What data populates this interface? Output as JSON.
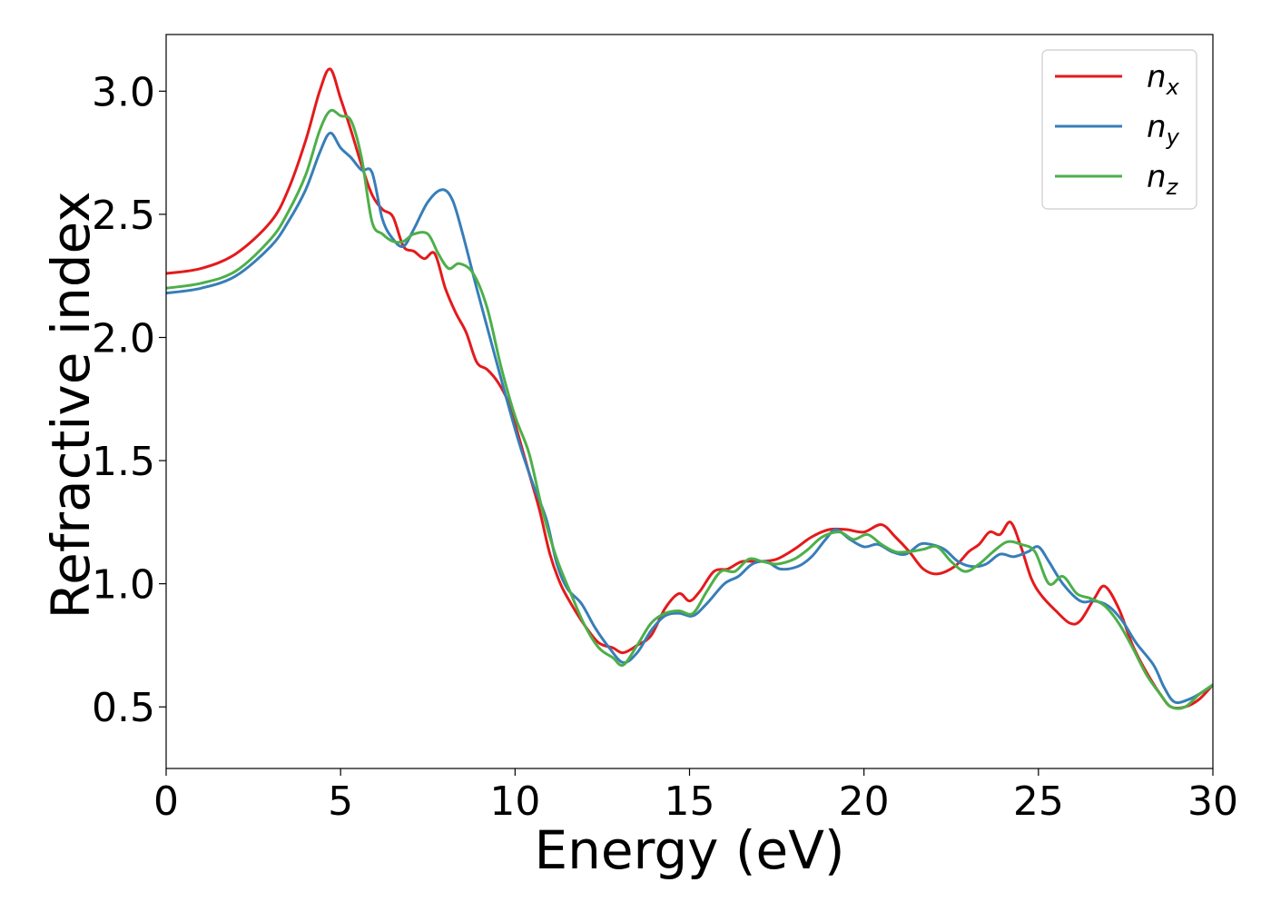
{
  "chart_data": {
    "type": "line",
    "title": "",
    "xlabel": "Energy (eV)",
    "ylabel": "Refractive index",
    "xlim": [
      0,
      30
    ],
    "ylim": [
      0.25,
      3.23
    ],
    "xticks": [
      0,
      5,
      10,
      15,
      20,
      25,
      30
    ],
    "yticks": [
      0.5,
      1.0,
      1.5,
      2.0,
      2.5,
      3.0
    ],
    "xtick_labels": [
      "0",
      "5",
      "10",
      "15",
      "20",
      "25",
      "30"
    ],
    "ytick_labels": [
      "0.5",
      "1.0",
      "1.5",
      "2.0",
      "2.5",
      "3.0"
    ],
    "grid": false,
    "legend": {
      "placement": "top-right",
      "entries": [
        {
          "base": "n",
          "sub": "x"
        },
        {
          "base": "n",
          "sub": "y"
        },
        {
          "base": "n",
          "sub": "z"
        }
      ]
    },
    "series": [
      {
        "name": "n_x",
        "color": "#e41a1c",
        "points": [
          [
            0,
            2.26
          ],
          [
            1,
            2.28
          ],
          [
            2,
            2.34
          ],
          [
            3,
            2.47
          ],
          [
            3.5,
            2.6
          ],
          [
            4,
            2.8
          ],
          [
            4.4,
            3.0
          ],
          [
            4.7,
            3.09
          ],
          [
            5,
            2.97
          ],
          [
            5.3,
            2.84
          ],
          [
            5.6,
            2.7
          ],
          [
            5.9,
            2.58
          ],
          [
            6.2,
            2.52
          ],
          [
            6.5,
            2.49
          ],
          [
            6.8,
            2.37
          ],
          [
            7.1,
            2.35
          ],
          [
            7.4,
            2.32
          ],
          [
            7.7,
            2.34
          ],
          [
            8,
            2.2
          ],
          [
            8.3,
            2.1
          ],
          [
            8.6,
            2.02
          ],
          [
            8.9,
            1.9
          ],
          [
            9.2,
            1.87
          ],
          [
            9.5,
            1.82
          ],
          [
            9.8,
            1.74
          ],
          [
            10.1,
            1.6
          ],
          [
            10.4,
            1.45
          ],
          [
            10.7,
            1.3
          ],
          [
            11,
            1.12
          ],
          [
            11.3,
            1.0
          ],
          [
            11.6,
            0.92
          ],
          [
            12,
            0.83
          ],
          [
            12.4,
            0.76
          ],
          [
            12.8,
            0.74
          ],
          [
            13.1,
            0.72
          ],
          [
            13.5,
            0.75
          ],
          [
            13.9,
            0.79
          ],
          [
            14.3,
            0.9
          ],
          [
            14.7,
            0.96
          ],
          [
            15,
            0.93
          ],
          [
            15.3,
            0.97
          ],
          [
            15.7,
            1.05
          ],
          [
            16.1,
            1.06
          ],
          [
            16.5,
            1.09
          ],
          [
            17,
            1.09
          ],
          [
            17.5,
            1.1
          ],
          [
            18,
            1.14
          ],
          [
            18.5,
            1.19
          ],
          [
            19,
            1.22
          ],
          [
            19.5,
            1.22
          ],
          [
            20,
            1.21
          ],
          [
            20.5,
            1.24
          ],
          [
            20.9,
            1.19
          ],
          [
            21.3,
            1.13
          ],
          [
            21.7,
            1.06
          ],
          [
            22.1,
            1.04
          ],
          [
            22.6,
            1.07
          ],
          [
            23,
            1.13
          ],
          [
            23.3,
            1.16
          ],
          [
            23.6,
            1.21
          ],
          [
            23.9,
            1.2
          ],
          [
            24.2,
            1.25
          ],
          [
            24.5,
            1.15
          ],
          [
            24.8,
            1.02
          ],
          [
            25.1,
            0.95
          ],
          [
            25.5,
            0.89
          ],
          [
            25.9,
            0.84
          ],
          [
            26.2,
            0.85
          ],
          [
            26.6,
            0.94
          ],
          [
            26.9,
            0.99
          ],
          [
            27.3,
            0.9
          ],
          [
            27.7,
            0.75
          ],
          [
            28.1,
            0.64
          ],
          [
            28.5,
            0.55
          ],
          [
            28.8,
            0.5
          ],
          [
            29.2,
            0.5
          ],
          [
            29.6,
            0.53
          ],
          [
            30,
            0.59
          ]
        ]
      },
      {
        "name": "n_y",
        "color": "#377eb8",
        "points": [
          [
            0,
            2.18
          ],
          [
            1,
            2.2
          ],
          [
            2,
            2.25
          ],
          [
            3,
            2.37
          ],
          [
            3.5,
            2.47
          ],
          [
            4,
            2.6
          ],
          [
            4.4,
            2.75
          ],
          [
            4.7,
            2.83
          ],
          [
            5,
            2.77
          ],
          [
            5.3,
            2.73
          ],
          [
            5.6,
            2.68
          ],
          [
            5.9,
            2.67
          ],
          [
            6.2,
            2.48
          ],
          [
            6.5,
            2.4
          ],
          [
            6.8,
            2.37
          ],
          [
            7.1,
            2.44
          ],
          [
            7.5,
            2.55
          ],
          [
            7.9,
            2.6
          ],
          [
            8.2,
            2.56
          ],
          [
            8.5,
            2.42
          ],
          [
            8.9,
            2.2
          ],
          [
            9.3,
            1.99
          ],
          [
            9.7,
            1.78
          ],
          [
            10.1,
            1.58
          ],
          [
            10.5,
            1.41
          ],
          [
            10.9,
            1.26
          ],
          [
            11.2,
            1.08
          ],
          [
            11.5,
            0.98
          ],
          [
            11.9,
            0.92
          ],
          [
            12.3,
            0.82
          ],
          [
            12.7,
            0.74
          ],
          [
            13.1,
            0.68
          ],
          [
            13.5,
            0.72
          ],
          [
            13.9,
            0.81
          ],
          [
            14.3,
            0.87
          ],
          [
            14.7,
            0.88
          ],
          [
            15.1,
            0.87
          ],
          [
            15.5,
            0.92
          ],
          [
            16,
            1.0
          ],
          [
            16.4,
            1.03
          ],
          [
            16.8,
            1.08
          ],
          [
            17.2,
            1.09
          ],
          [
            17.6,
            1.06
          ],
          [
            18.1,
            1.07
          ],
          [
            18.5,
            1.11
          ],
          [
            18.9,
            1.18
          ],
          [
            19.2,
            1.22
          ],
          [
            19.6,
            1.18
          ],
          [
            20,
            1.15
          ],
          [
            20.4,
            1.16
          ],
          [
            20.8,
            1.13
          ],
          [
            21.2,
            1.12
          ],
          [
            21.6,
            1.16
          ],
          [
            21.9,
            1.16
          ],
          [
            22.3,
            1.14
          ],
          [
            22.7,
            1.09
          ],
          [
            23.1,
            1.07
          ],
          [
            23.5,
            1.08
          ],
          [
            23.9,
            1.12
          ],
          [
            24.3,
            1.11
          ],
          [
            24.7,
            1.13
          ],
          [
            25,
            1.15
          ],
          [
            25.3,
            1.09
          ],
          [
            25.7,
            1.0
          ],
          [
            26.2,
            0.93
          ],
          [
            26.6,
            0.93
          ],
          [
            27,
            0.91
          ],
          [
            27.4,
            0.85
          ],
          [
            27.8,
            0.76
          ],
          [
            28.3,
            0.67
          ],
          [
            28.6,
            0.58
          ],
          [
            28.9,
            0.52
          ],
          [
            29.3,
            0.53
          ],
          [
            29.7,
            0.56
          ],
          [
            30,
            0.59
          ]
        ]
      },
      {
        "name": "n_z",
        "color": "#4daf4a",
        "points": [
          [
            0,
            2.2
          ],
          [
            1,
            2.22
          ],
          [
            2,
            2.27
          ],
          [
            3,
            2.4
          ],
          [
            3.5,
            2.51
          ],
          [
            4,
            2.66
          ],
          [
            4.4,
            2.84
          ],
          [
            4.7,
            2.92
          ],
          [
            5,
            2.9
          ],
          [
            5.3,
            2.88
          ],
          [
            5.6,
            2.73
          ],
          [
            5.9,
            2.47
          ],
          [
            6.2,
            2.42
          ],
          [
            6.5,
            2.39
          ],
          [
            6.8,
            2.39
          ],
          [
            7.1,
            2.42
          ],
          [
            7.5,
            2.42
          ],
          [
            7.8,
            2.34
          ],
          [
            8.1,
            2.28
          ],
          [
            8.4,
            2.3
          ],
          [
            8.8,
            2.26
          ],
          [
            9.2,
            2.12
          ],
          [
            9.6,
            1.88
          ],
          [
            10,
            1.68
          ],
          [
            10.4,
            1.53
          ],
          [
            10.8,
            1.29
          ],
          [
            11.2,
            1.1
          ],
          [
            11.6,
            0.96
          ],
          [
            12,
            0.83
          ],
          [
            12.4,
            0.74
          ],
          [
            12.8,
            0.7
          ],
          [
            13.1,
            0.67
          ],
          [
            13.5,
            0.75
          ],
          [
            13.9,
            0.84
          ],
          [
            14.3,
            0.88
          ],
          [
            14.7,
            0.89
          ],
          [
            15.1,
            0.88
          ],
          [
            15.5,
            0.97
          ],
          [
            15.9,
            1.05
          ],
          [
            16.3,
            1.05
          ],
          [
            16.7,
            1.1
          ],
          [
            17.1,
            1.09
          ],
          [
            17.5,
            1.08
          ],
          [
            18,
            1.1
          ],
          [
            18.4,
            1.14
          ],
          [
            18.8,
            1.19
          ],
          [
            19.3,
            1.21
          ],
          [
            19.7,
            1.18
          ],
          [
            20.1,
            1.2
          ],
          [
            20.5,
            1.16
          ],
          [
            20.9,
            1.13
          ],
          [
            21.3,
            1.13
          ],
          [
            21.7,
            1.14
          ],
          [
            22.1,
            1.15
          ],
          [
            22.5,
            1.09
          ],
          [
            22.9,
            1.05
          ],
          [
            23.3,
            1.08
          ],
          [
            23.7,
            1.13
          ],
          [
            24.1,
            1.17
          ],
          [
            24.5,
            1.16
          ],
          [
            24.9,
            1.13
          ],
          [
            25.3,
            1.0
          ],
          [
            25.7,
            1.03
          ],
          [
            26.1,
            0.96
          ],
          [
            26.5,
            0.94
          ],
          [
            26.9,
            0.91
          ],
          [
            27.3,
            0.84
          ],
          [
            27.7,
            0.74
          ],
          [
            28.1,
            0.63
          ],
          [
            28.5,
            0.55
          ],
          [
            28.8,
            0.5
          ],
          [
            29.2,
            0.5
          ],
          [
            29.6,
            0.55
          ],
          [
            30,
            0.59
          ]
        ]
      }
    ]
  }
}
